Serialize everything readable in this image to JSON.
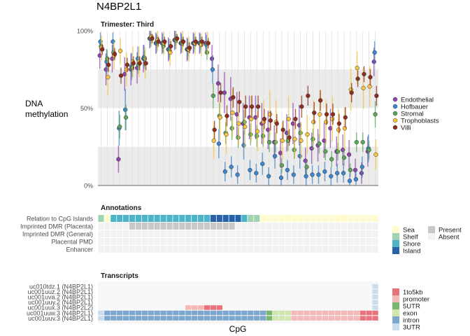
{
  "title": "N4BP2L1",
  "colors": {
    "Endothelial": "#8E44AD",
    "Hofbauer": "#3A86CF",
    "Stromal": "#5BA55B",
    "Trophoblasts": "#F6C445",
    "Villi": "#8E2E1E",
    "Sea": "#FFFBCF",
    "Shelf": "#9FD4B2",
    "Shore": "#4DB3C9",
    "Island": "#2762A8",
    "Present": "#C8C8C8",
    "Absent": "#F2F2F2",
    "1to5kb": "#E8737A",
    "promoter": "#F4B8B8",
    "5UTR": "#79B86B",
    "exon": "#CFE6AE",
    "intron": "#7BA7CF",
    "3UTR": "#C9DDEF"
  },
  "chart_data": [
    {
      "type": "scatter",
      "title": "Trimester: Third",
      "ylabel": "DNA\nmethylation",
      "xlabel": "CpG",
      "ylim": [
        0,
        1
      ],
      "yticks": [
        "0%",
        "50%",
        "100%"
      ],
      "grid": true,
      "legend_position": "right",
      "series": [
        {
          "name": "Endothelial",
          "values": [
            0.84,
            0.75,
            0.82,
            0.17,
            0.72,
            0.75,
            0.76,
            0.82,
            0.95,
            0.92,
            0.92,
            0.88,
            0.94,
            0.92,
            0.88,
            0.92,
            0.92,
            0.92,
            0.82,
            0.66,
            0.6,
            0.56,
            0.46,
            0.4,
            0.44,
            0.44,
            0.4,
            0.36,
            0.28,
            0.21,
            0.34,
            0.4,
            0.39,
            0.16,
            0.24,
            0.26,
            0.29,
            0.37,
            0.22,
            0.23,
            0.2,
            0.1,
            0.08,
            0.22,
            0.8
          ]
        },
        {
          "name": "Hofbauer",
          "values": [
            0.93,
            0.8,
            0.93,
            0.37,
            0.49,
            0.77,
            0.82,
            0.83,
            0.95,
            0.92,
            0.92,
            0.88,
            0.94,
            0.92,
            0.88,
            0.92,
            0.92,
            0.91,
            0.75,
            0.27,
            0.09,
            0.12,
            0.07,
            0.26,
            0.1,
            0.08,
            0.14,
            0.06,
            0.19,
            0.05,
            0.1,
            0.07,
            0.19,
            0.06,
            0.07,
            0.07,
            0.09,
            0.06,
            0.08,
            0.08,
            0.03,
            0.04,
            0.12,
            0.24,
            0.86
          ]
        },
        {
          "name": "Stromal",
          "values": [
            0.9,
            0.82,
            0.86,
            0.38,
            0.44,
            0.76,
            0.78,
            0.82,
            0.95,
            0.93,
            0.9,
            0.87,
            0.94,
            0.92,
            0.88,
            0.92,
            0.92,
            0.86,
            0.58,
            0.45,
            0.34,
            0.37,
            0.31,
            0.41,
            0.33,
            0.32,
            0.32,
            0.28,
            0.28,
            0.13,
            0.29,
            0.23,
            0.34,
            0.12,
            0.3,
            0.27,
            0.22,
            0.17,
            0.22,
            0.18,
            0.1,
            0.28,
            0.28,
            0.23,
            0.46
          ]
        },
        {
          "name": "Trophoblasts",
          "values": [
            0.89,
            0.7,
            0.84,
            0.87,
            0.75,
            0.8,
            0.8,
            0.79,
            0.96,
            0.94,
            0.92,
            0.86,
            0.95,
            0.93,
            0.88,
            0.92,
            0.91,
            0.92,
            0.29,
            0.44,
            0.33,
            0.47,
            0.4,
            0.38,
            0.43,
            0.35,
            0.41,
            0.46,
            0.41,
            0.29,
            0.43,
            0.3,
            0.29,
            0.33,
            0.41,
            0.46,
            0.41,
            0.43,
            0.36,
            0.37,
            0.62,
            0.76,
            0.63,
            0.64,
            0.2
          ]
        },
        {
          "name": "Villi",
          "values": [
            0.88,
            0.78,
            0.85,
            0.71,
            0.78,
            0.79,
            0.79,
            0.79,
            0.95,
            0.93,
            0.93,
            0.9,
            0.95,
            0.93,
            0.89,
            0.93,
            0.93,
            0.92,
            0.36,
            0.6,
            0.45,
            0.57,
            0.54,
            0.51,
            0.51,
            0.51,
            0.43,
            0.42,
            0.4,
            0.36,
            0.31,
            0.43,
            0.51,
            0.58,
            0.47,
            0.55,
            0.46,
            0.46,
            0.4,
            0.44,
            0.6,
            0.69,
            0.72,
            0.7,
            0.58
          ]
        }
      ]
    },
    {
      "type": "heatmap",
      "title": "Annotations",
      "rows": [
        "Relation to CpG Islands",
        "Imprinted DMR (Placenta)",
        "Imprinted DMR (General)",
        "Placental PMD",
        "Enhancer"
      ],
      "cpg_island": [
        "Shelf",
        "Sea",
        "Shore",
        "Shore",
        "Shore",
        "Shore",
        "Shore",
        "Shore",
        "Shore",
        "Shore",
        "Shore",
        "Shore",
        "Shore",
        "Shore",
        "Shore",
        "Shore",
        "Shore",
        "Shore",
        "Island",
        "Island",
        "Island",
        "Island",
        "Island",
        "Shore",
        "Shelf",
        "Shelf",
        "Sea",
        "Sea",
        "Sea",
        "Sea",
        "Sea",
        "Sea",
        "Sea",
        "Sea",
        "Sea",
        "Sea",
        "Sea",
        "Sea",
        "Sea",
        "Sea",
        "Sea",
        "Sea",
        "Sea",
        "Sea",
        "Sea"
      ],
      "imprinted_dmr_placenta_present": [
        5,
        22
      ],
      "legend_island": [
        "Sea",
        "Shelf",
        "Shore",
        "Island"
      ],
      "legend_presence": [
        "Present",
        "Absent"
      ]
    },
    {
      "type": "heatmap",
      "title": "Transcripts",
      "rows": [
        "uc010tdz.1 (N4BP2L1)",
        "uc001uuz.2 (N4BP2L1)",
        "uc001uva.2 (N4BP2L1)",
        "uc001uuy.2 (N4BP2L1)",
        "uc001uux.3 (N4BP2L2)",
        "uc001uuw.3 (N4BP2L1)",
        "uc001uuv.3 (N4BP2L1)"
      ],
      "row_segments": [
        [
          [
            "3UTR",
            44,
            45
          ]
        ],
        [
          [
            "3UTR",
            44,
            45
          ]
        ],
        [
          [
            "3UTR",
            44,
            45
          ]
        ],
        [
          [
            "3UTR",
            44,
            45
          ]
        ],
        [
          [
            "promoter",
            14,
            17
          ],
          [
            "1to5kb",
            17,
            20
          ],
          [
            "3UTR",
            44,
            45
          ]
        ],
        [
          [
            "3UTR",
            0,
            1
          ],
          [
            "intron",
            1,
            27
          ],
          [
            "5UTR",
            27,
            28
          ],
          [
            "exon",
            28,
            31
          ],
          [
            "promoter",
            31,
            42
          ],
          [
            "1to5kb",
            42,
            45
          ]
        ],
        [
          [
            "3UTR",
            0,
            1
          ],
          [
            "intron",
            1,
            27
          ],
          [
            "5UTR",
            27,
            28
          ],
          [
            "exon",
            28,
            31
          ],
          [
            "promoter",
            31,
            42
          ],
          [
            "1to5kb",
            42,
            45
          ]
        ]
      ],
      "legend": [
        "1to5kb",
        "promoter",
        "5UTR",
        "exon",
        "intron",
        "3UTR"
      ]
    }
  ]
}
